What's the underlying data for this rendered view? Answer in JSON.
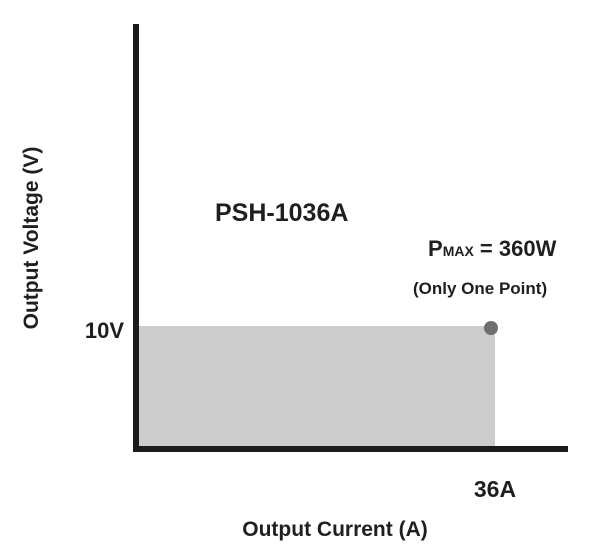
{
  "chart_data": {
    "type": "area",
    "model_label": "PSH-1036A",
    "xlabel": "Output Current (A)",
    "ylabel": "Output Voltage (V)",
    "x_tick_label": "36A",
    "y_tick_label": "10V",
    "operating_region": {
      "max_current": 36,
      "max_voltage": 10,
      "fill_color": "#cccccc"
    },
    "pmax_point": {
      "x": 36,
      "y": 10,
      "label_prefix": "P",
      "label_subscript": "MAX",
      "label_value": " = 360W",
      "note": "(Only One Point)",
      "color": "#6e6e6e"
    },
    "axis_color": "#1a1a1a",
    "grid": false
  }
}
